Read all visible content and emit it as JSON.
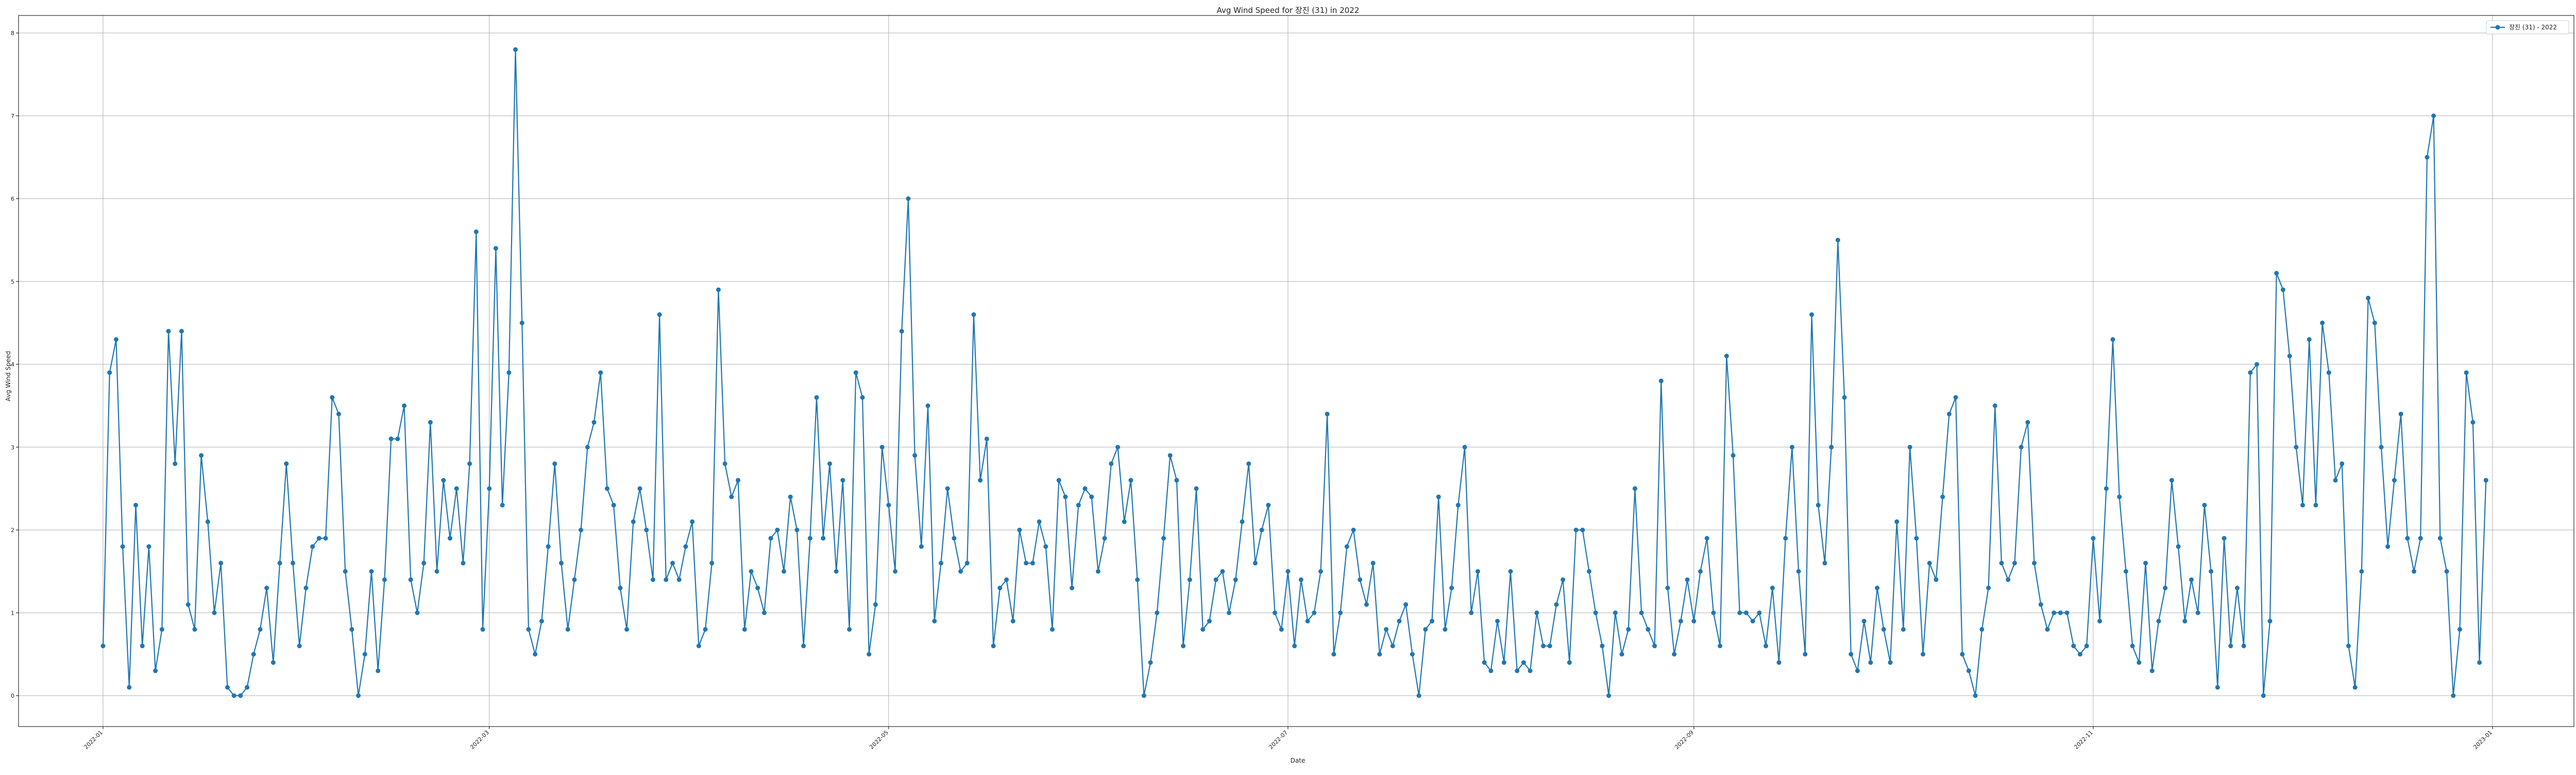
{
  "chart_data": {
    "type": "line",
    "title": "Avg Wind Speed for 장진 (31) in 2022",
    "xlabel": "Date",
    "ylabel": "Avg Wind Speed",
    "xlim": [
      "2022-01-01",
      "2023-01-01"
    ],
    "ylim": [
      0,
      8
    ],
    "y_ticks": [
      0,
      1,
      2,
      3,
      4,
      5,
      6,
      7,
      8
    ],
    "x_ticks": [
      "2022-01",
      "2022-03",
      "2022-05",
      "2022-07",
      "2022-09",
      "2022-11",
      "2023-01"
    ],
    "grid": true,
    "legend_position": "top-right",
    "series": [
      {
        "name": "장진 (31) - 2022",
        "color": "#1f77b4",
        "x_start": "2022-01-01",
        "x_step": "1 day",
        "values": [
          0.6,
          3.9,
          4.3,
          1.8,
          0.1,
          2.3,
          0.6,
          1.8,
          0.3,
          0.8,
          4.4,
          2.8,
          4.4,
          1.1,
          0.8,
          2.9,
          2.1,
          1.0,
          1.6,
          0.1,
          0.0,
          0.0,
          0.1,
          0.5,
          0.8,
          1.3,
          0.4,
          1.6,
          2.8,
          1.6,
          0.6,
          1.3,
          1.8,
          1.9,
          1.9,
          3.6,
          3.4,
          1.5,
          0.8,
          0.0,
          0.5,
          1.5,
          0.3,
          1.4,
          3.1,
          3.1,
          3.5,
          1.4,
          1.0,
          1.6,
          3.3,
          1.5,
          2.6,
          1.9,
          2.5,
          1.6,
          2.8,
          5.6,
          0.8,
          2.5,
          5.4,
          2.3,
          3.9,
          7.8,
          4.5,
          0.8,
          0.5,
          0.9,
          1.8,
          2.8,
          1.6,
          0.8,
          1.4,
          2.0,
          3.0,
          3.3,
          3.9,
          2.5,
          2.3,
          1.3,
          0.8,
          2.1,
          2.5,
          2.0,
          1.4,
          4.6,
          1.4,
          1.6,
          1.4,
          1.8,
          2.1,
          0.6,
          0.8,
          1.6,
          4.9,
          2.8,
          2.4,
          2.6,
          0.8,
          1.5,
          1.3,
          1.0,
          1.9,
          2.0,
          1.5,
          2.4,
          2.0,
          0.6,
          1.9,
          3.6,
          1.9,
          2.8,
          1.5,
          2.6,
          0.8,
          3.9,
          3.6,
          0.5,
          1.1,
          3.0,
          2.3,
          1.5,
          4.4,
          6.0,
          2.9,
          1.8,
          3.5,
          0.9,
          1.6,
          2.5,
          1.9,
          1.5,
          1.6,
          4.6,
          2.6,
          3.1,
          0.6,
          1.3,
          1.4,
          0.9,
          2.0,
          1.6,
          1.6,
          2.1,
          1.8,
          0.8,
          2.6,
          2.4,
          1.3,
          2.3,
          2.5,
          2.4,
          1.5,
          1.9,
          2.8,
          3.0,
          2.1,
          2.6,
          1.4,
          0.0,
          0.4,
          1.0,
          1.9,
          2.9,
          2.6,
          0.6,
          1.4,
          2.5,
          0.8,
          0.9,
          1.4,
          1.5,
          1.0,
          1.4,
          2.1,
          2.8,
          1.6,
          2.0,
          2.3,
          1.0,
          0.8,
          1.5,
          0.6,
          1.4,
          0.9,
          1.0,
          1.5,
          3.4,
          0.5,
          1.0,
          1.8,
          2.0,
          1.4,
          1.1,
          1.6,
          0.5,
          0.8,
          0.6,
          0.9,
          1.1,
          0.5,
          0.0,
          0.8,
          0.9,
          2.4,
          0.8,
          1.3,
          2.3,
          3.0,
          1.0,
          1.5,
          0.4,
          0.3,
          0.9,
          0.4,
          1.5,
          0.3,
          0.4,
          0.3,
          1.0,
          0.6,
          0.6,
          1.1,
          1.4,
          0.4,
          2.0,
          2.0,
          1.5,
          1.0,
          0.6,
          0.0,
          1.0,
          0.5,
          0.8,
          2.5,
          1.0,
          0.8,
          0.6,
          3.8,
          1.3,
          0.5,
          0.9,
          1.4,
          0.9,
          1.5,
          1.9,
          1.0,
          0.6,
          4.1,
          2.9,
          1.0,
          1.0,
          0.9,
          1.0,
          0.6,
          1.3,
          0.4,
          1.9,
          3.0,
          1.5,
          0.5,
          4.6,
          2.3,
          1.6,
          3.0,
          5.5,
          3.6,
          0.5,
          0.3,
          0.9,
          0.4,
          1.3,
          0.8,
          0.4,
          2.1,
          0.8,
          3.0,
          1.9,
          0.5,
          1.6,
          1.4,
          2.4,
          3.4,
          3.6,
          0.5,
          0.3,
          0.0,
          0.8,
          1.3,
          3.5,
          1.6,
          1.4,
          1.6,
          3.0,
          3.3,
          1.6,
          1.1,
          0.8,
          1.0,
          1.0,
          1.0,
          0.6,
          0.5,
          0.6,
          1.9,
          0.9,
          2.5,
          4.3,
          2.4,
          1.5,
          0.6,
          0.4,
          1.6,
          0.3,
          0.9,
          1.3,
          2.6,
          1.8,
          0.9,
          1.4,
          1.0,
          2.3,
          1.5,
          0.1,
          1.9,
          0.6,
          1.3,
          0.6,
          3.9,
          4.0,
          0.0,
          0.9,
          5.1,
          4.9,
          4.1,
          3.0,
          2.3,
          4.3,
          2.3,
          4.5,
          3.9,
          2.6,
          2.8,
          0.6,
          0.1,
          1.5,
          4.8,
          4.5,
          3.0,
          1.8,
          2.6,
          3.4,
          1.9,
          1.5,
          1.9,
          6.5,
          7.0,
          1.9,
          1.5,
          0.0,
          0.8,
          3.9,
          3.3,
          0.4,
          2.6
        ]
      }
    ]
  }
}
